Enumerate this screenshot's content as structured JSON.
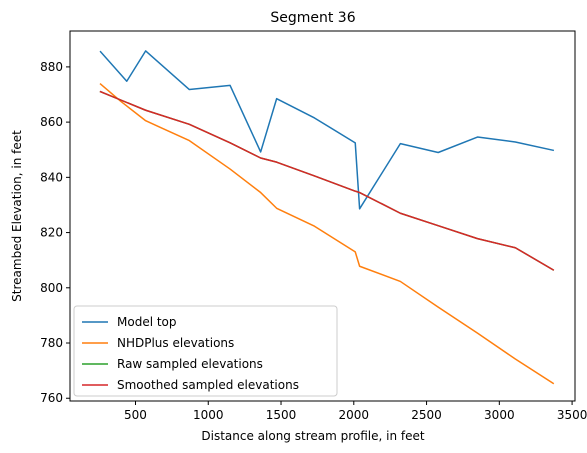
{
  "chart_data": {
    "type": "line",
    "title": "Segment 36",
    "xlabel": "Distance along stream profile, in feet",
    "ylabel": "Streambed Elevation, in feet",
    "xlim": [
      50,
      3520
    ],
    "ylim": [
      759,
      893
    ],
    "xticks": [
      500,
      1000,
      1500,
      2000,
      2500,
      3000,
      3500
    ],
    "yticks": [
      760,
      780,
      800,
      820,
      840,
      860,
      880
    ],
    "grid": false,
    "legend_position": "lower-left",
    "series": [
      {
        "name": "Model top",
        "color": "#1f77b4",
        "points": [
          [
            260,
            885.5
          ],
          [
            440,
            874.8
          ],
          [
            570,
            885.8
          ],
          [
            870,
            871.8
          ],
          [
            1150,
            873.3
          ],
          [
            1360,
            849.2
          ],
          [
            1470,
            868.5
          ],
          [
            1730,
            861.5
          ],
          [
            2010,
            852.5
          ],
          [
            2040,
            828.6
          ],
          [
            2320,
            852.2
          ],
          [
            2580,
            849.0
          ],
          [
            2850,
            854.6
          ],
          [
            3110,
            852.8
          ],
          [
            3370,
            849.8
          ]
        ]
      },
      {
        "name": "NHDPlus elevations",
        "color": "#ff7f0e",
        "points": [
          [
            260,
            873.8
          ],
          [
            400,
            867.5
          ],
          [
            570,
            860.5
          ],
          [
            870,
            853.3
          ],
          [
            1150,
            843.0
          ],
          [
            1360,
            834.5
          ],
          [
            1470,
            828.8
          ],
          [
            1730,
            822.3
          ],
          [
            2010,
            813.0
          ],
          [
            2040,
            807.8
          ],
          [
            2320,
            802.3
          ],
          [
            2580,
            793.0
          ],
          [
            2850,
            783.6
          ],
          [
            3110,
            774.2
          ],
          [
            3370,
            765.4
          ]
        ]
      },
      {
        "name": "Raw sampled elevations",
        "color": "#2ca02c",
        "points": [
          [
            260,
            871.0
          ],
          [
            570,
            864.3
          ],
          [
            870,
            859.2
          ],
          [
            1150,
            852.5
          ],
          [
            1360,
            847.0
          ],
          [
            1470,
            845.5
          ],
          [
            1730,
            840.5
          ],
          [
            2010,
            835.0
          ],
          [
            2040,
            834.5
          ],
          [
            2320,
            827.0
          ],
          [
            2580,
            822.5
          ],
          [
            2850,
            817.8
          ],
          [
            3110,
            814.5
          ],
          [
            3370,
            806.5
          ]
        ]
      },
      {
        "name": "Smoothed sampled elevations",
        "color": "#d62728",
        "points": [
          [
            260,
            871.0
          ],
          [
            570,
            864.3
          ],
          [
            870,
            859.2
          ],
          [
            1150,
            852.5
          ],
          [
            1360,
            847.0
          ],
          [
            1470,
            845.5
          ],
          [
            1730,
            840.5
          ],
          [
            2010,
            835.0
          ],
          [
            2040,
            834.5
          ],
          [
            2320,
            827.0
          ],
          [
            2580,
            822.5
          ],
          [
            2850,
            817.8
          ],
          [
            3110,
            814.5
          ],
          [
            3370,
            806.5
          ]
        ]
      }
    ]
  }
}
